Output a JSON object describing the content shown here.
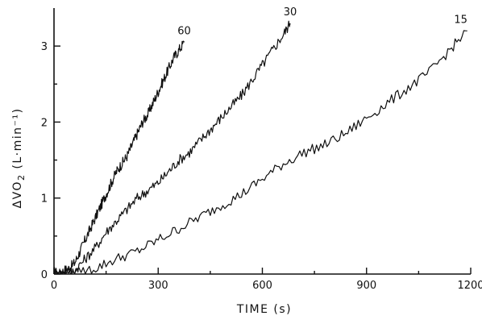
{
  "chart_data": {
    "type": "line",
    "xlabel": "TIME (s)",
    "ylabel_main": "ΔVO",
    "ylabel_sub": "2",
    "ylabel_units": " (L·min⁻¹)",
    "xlim": [
      0,
      1200
    ],
    "ylim": [
      0,
      3.5
    ],
    "x_ticks": [
      0,
      300,
      600,
      900,
      1200
    ],
    "x_tick_labels": [
      "0",
      "300",
      "600",
      "900",
      "1200"
    ],
    "y_ticks": [
      0,
      1,
      2,
      3
    ],
    "y_tick_labels": [
      "0",
      "1",
      "2",
      "3"
    ],
    "grid": false,
    "legend": "none",
    "series": [
      {
        "name": "60",
        "x": [
          0,
          15,
          30,
          45,
          60,
          75,
          90,
          105,
          120,
          135,
          150,
          165,
          180,
          195,
          210,
          225,
          240,
          255,
          270,
          285,
          300,
          315,
          330,
          345,
          360,
          375
        ],
        "y": [
          0.03,
          0.0,
          0.05,
          0.08,
          0.15,
          0.3,
          0.45,
          0.6,
          0.75,
          0.9,
          1.05,
          1.2,
          1.35,
          1.45,
          1.55,
          1.7,
          1.85,
          2.0,
          2.1,
          2.25,
          2.4,
          2.55,
          2.7,
          2.85,
          2.95,
          3.05
        ]
      },
      {
        "name": "30",
        "x": [
          0,
          30,
          60,
          90,
          120,
          150,
          180,
          210,
          240,
          270,
          300,
          330,
          360,
          390,
          420,
          450,
          480,
          510,
          540,
          570,
          600,
          630,
          660,
          680
        ],
        "y": [
          0.02,
          0.0,
          0.05,
          0.2,
          0.35,
          0.55,
          0.7,
          0.85,
          1.0,
          1.1,
          1.2,
          1.35,
          1.5,
          1.6,
          1.75,
          1.9,
          2.05,
          2.2,
          2.35,
          2.55,
          2.75,
          2.95,
          3.15,
          3.3
        ]
      },
      {
        "name": "15",
        "x": [
          0,
          60,
          120,
          180,
          240,
          300,
          360,
          420,
          480,
          540,
          600,
          660,
          720,
          780,
          840,
          900,
          960,
          1020,
          1080,
          1140,
          1190
        ],
        "y": [
          0.02,
          0.0,
          0.08,
          0.2,
          0.3,
          0.45,
          0.6,
          0.75,
          0.9,
          1.05,
          1.25,
          1.45,
          1.6,
          1.7,
          1.85,
          2.05,
          2.25,
          2.45,
          2.65,
          2.95,
          3.2
        ]
      }
    ]
  }
}
